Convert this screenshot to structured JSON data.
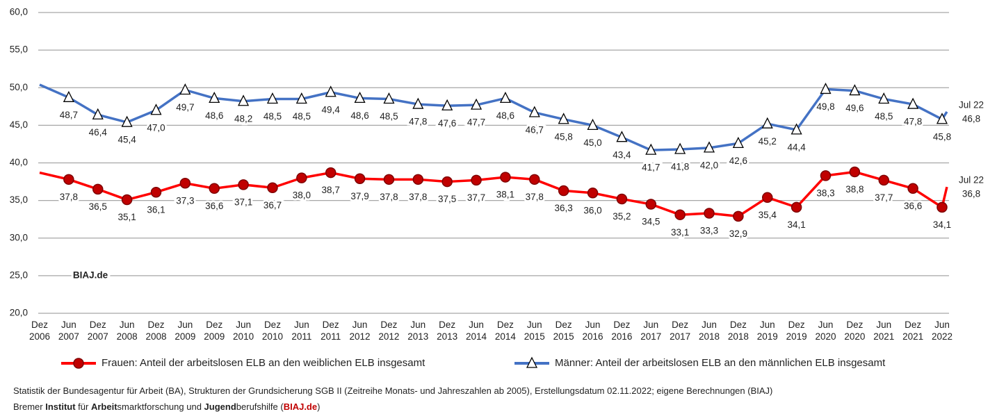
{
  "chart_data": {
    "type": "line",
    "categories": [
      "Dez 2006",
      "Jun 2007",
      "Dez 2007",
      "Jun 2008",
      "Dez 2008",
      "Jun 2009",
      "Dez 2009",
      "Jun 2010",
      "Dez 2010",
      "Jun 2011",
      "Dez 2011",
      "Jun 2012",
      "Dez 2012",
      "Jun 2013",
      "Dez 2013",
      "Jun 2014",
      "Dez 2014",
      "Jun 2015",
      "Dez 2015",
      "Jun 2016",
      "Dez 2016",
      "Jun 2017",
      "Dez 2017",
      "Jun 2018",
      "Dez 2018",
      "Jun 2019",
      "Dez 2019",
      "Jun 2020",
      "Dez 2020",
      "Jun 2021",
      "Dez 2021",
      "Jun 2022"
    ],
    "latest_label": "Jul 22",
    "series": [
      {
        "name": "Frauen: Anteil der arbeitslosen ELB an den weiblichen ELB insgesamt",
        "color": "#ff0000",
        "marker": "circle",
        "marker_color": "#c00000",
        "values": [
          38.7,
          37.8,
          36.5,
          35.1,
          36.1,
          37.3,
          36.6,
          37.1,
          36.7,
          38.0,
          38.7,
          37.9,
          37.8,
          37.8,
          37.5,
          37.7,
          38.1,
          37.8,
          36.3,
          36.0,
          35.2,
          34.5,
          33.1,
          33.3,
          32.9,
          35.4,
          34.1,
          38.3,
          38.8,
          37.7,
          36.6,
          34.1
        ],
        "value_labels": [
          null,
          "37,8",
          "36,5",
          "35,1",
          "36,1",
          "37,3",
          "36,6",
          "37,1",
          "36,7",
          "38,0",
          "38,7",
          "37,9",
          "37,8",
          "37,8",
          "37,5",
          "37,7",
          "38,1",
          "37,8",
          "36,3",
          "36,0",
          "35,2",
          "34,5",
          "33,1",
          "33,3",
          "32,9",
          "35,4",
          "34,1",
          "38,3",
          "38,8",
          "37,7",
          "36,6",
          "34,1"
        ],
        "latest_value": 36.8,
        "latest_value_label": "36,8"
      },
      {
        "name": "Männer: Anteil der arbeitslosen ELB an den männlichen ELB insgesamt",
        "color": "#4472c4",
        "marker": "triangle",
        "marker_color": "#ffffff",
        "values": [
          50.4,
          48.7,
          46.4,
          45.4,
          47.0,
          49.7,
          48.6,
          48.2,
          48.5,
          48.5,
          49.4,
          48.6,
          48.5,
          47.8,
          47.6,
          47.7,
          48.6,
          46.7,
          45.8,
          45.0,
          43.4,
          41.7,
          41.8,
          42.0,
          42.6,
          45.2,
          44.4,
          49.8,
          49.6,
          48.5,
          47.8,
          45.8
        ],
        "value_labels": [
          null,
          "48,7",
          "46,4",
          "45,4",
          "47,0",
          "49,7",
          "48,6",
          "48,2",
          "48,5",
          "48,5",
          "49,4",
          "48,6",
          "48,5",
          "47,8",
          "47,6",
          "47,7",
          "48,6",
          "46,7",
          "45,8",
          "45,0",
          "43,4",
          "41,7",
          "41,8",
          "42,0",
          "42,6",
          "45,2",
          "44,4",
          "49,8",
          "49,6",
          "48,5",
          "47,8",
          "45,8"
        ],
        "latest_value": 46.8,
        "latest_value_label": "46,8"
      }
    ],
    "ylim": [
      20,
      60
    ],
    "yticks": [
      {
        "value": 20,
        "label": "20,0"
      },
      {
        "value": 25,
        "label": "25,0"
      },
      {
        "value": 30,
        "label": "30,0"
      },
      {
        "value": 35,
        "label": "35,0"
      },
      {
        "value": 40,
        "label": "40,0"
      },
      {
        "value": 45,
        "label": "45,0"
      },
      {
        "value": 50,
        "label": "50,0"
      },
      {
        "value": 55,
        "label": "55,0"
      },
      {
        "value": 60,
        "label": "60,0"
      }
    ],
    "grid": true,
    "watermark": "BIAJ.de",
    "source": "Statistik der Bundesagentur für Arbeit (BA), Strukturen der Grundsicherung SGB II (Zeitreihe Monats- und Jahreszahlen ab 2005), Erstellungsdatum 02.11.2022; eigene Berechnungen (BIAJ)",
    "credit": [
      {
        "text": "Bremer ",
        "bold": false
      },
      {
        "text": "Institut",
        "bold": true
      },
      {
        "text": " für ",
        "bold": false
      },
      {
        "text": "Arbeit",
        "bold": true
      },
      {
        "text": "smarktforschung und ",
        "bold": false
      },
      {
        "text": "Jugend",
        "bold": true
      },
      {
        "text": "berufshilfe (",
        "bold": false
      },
      {
        "text": "BIAJ.de",
        "bold": true,
        "color": "#c00000"
      },
      {
        "text": ")",
        "bold": false
      }
    ]
  }
}
